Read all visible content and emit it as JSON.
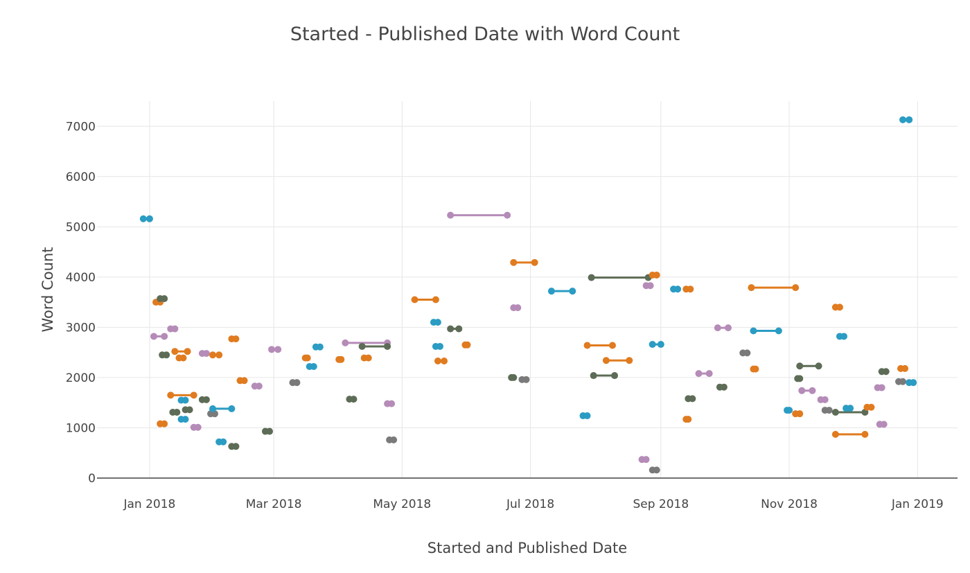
{
  "chart_data": {
    "type": "scatter",
    "title": "Started - Published Date with Word Count",
    "xlabel": "Started and Published Date",
    "ylabel": "Word Count",
    "x_axis_type": "date",
    "xlim": [
      "2017-12-07",
      "2019-01-20"
    ],
    "ylim": [
      0,
      7500
    ],
    "x_ticks": [
      {
        "date": "2018-01-01",
        "label": "Jan 2018"
      },
      {
        "date": "2018-03-01",
        "label": "Mar 2018"
      },
      {
        "date": "2018-05-01",
        "label": "May 2018"
      },
      {
        "date": "2018-07-01",
        "label": "Jul 2018"
      },
      {
        "date": "2018-09-01",
        "label": "Sep 2018"
      },
      {
        "date": "2018-11-01",
        "label": "Nov 2018"
      },
      {
        "date": "2019-01-01",
        "label": "Jan 2019"
      }
    ],
    "y_ticks": [
      0,
      1000,
      2000,
      3000,
      4000,
      5000,
      6000,
      7000
    ],
    "grid": true,
    "legend": "none",
    "colors": {
      "blue": "#2b9cc3",
      "orange": "#e07b1f",
      "olive": "#5d6c56",
      "purple": "#b58bb8",
      "gray": "#7a7a7a"
    },
    "series": [
      {
        "started": "2017-12-29",
        "published": "2018-01-01",
        "word_count": 5160,
        "color": "blue"
      },
      {
        "started": "2018-01-04",
        "published": "2018-01-06",
        "word_count": 3500,
        "color": "orange"
      },
      {
        "started": "2018-01-07",
        "published": "2018-01-07",
        "word_count": 3570,
        "color": "olive"
      },
      {
        "started": "2018-01-03",
        "published": "2018-01-08",
        "word_count": 2820,
        "color": "purple"
      },
      {
        "started": "2018-01-08",
        "published": "2018-01-08",
        "word_count": 2450,
        "color": "olive"
      },
      {
        "started": "2018-01-07",
        "published": "2018-01-07",
        "word_count": 1080,
        "color": "orange"
      },
      {
        "started": "2018-01-11",
        "published": "2018-01-13",
        "word_count": 2970,
        "color": "purple"
      },
      {
        "started": "2018-01-13",
        "published": "2018-01-19",
        "word_count": 2520,
        "color": "orange"
      },
      {
        "started": "2018-01-16",
        "published": "2018-01-16",
        "word_count": 2390,
        "color": "orange"
      },
      {
        "started": "2018-01-11",
        "published": "2018-01-22",
        "word_count": 1650,
        "color": "orange"
      },
      {
        "started": "2018-01-13",
        "published": "2018-01-13",
        "word_count": 1310,
        "color": "olive"
      },
      {
        "started": "2018-01-17",
        "published": "2018-01-17",
        "word_count": 1550,
        "color": "blue"
      },
      {
        "started": "2018-01-19",
        "published": "2018-01-19",
        "word_count": 1360,
        "color": "olive"
      },
      {
        "started": "2018-01-17",
        "published": "2018-01-17",
        "word_count": 1170,
        "color": "blue"
      },
      {
        "started": "2018-01-23",
        "published": "2018-01-23",
        "word_count": 1010,
        "color": "purple"
      },
      {
        "started": "2018-01-27",
        "published": "2018-01-27",
        "word_count": 2480,
        "color": "purple"
      },
      {
        "started": "2018-01-31",
        "published": "2018-02-03",
        "word_count": 2450,
        "color": "orange"
      },
      {
        "started": "2018-01-27",
        "published": "2018-01-27",
        "word_count": 1560,
        "color": "olive"
      },
      {
        "started": "2018-01-31",
        "published": "2018-01-31",
        "word_count": 1280,
        "color": "gray"
      },
      {
        "started": "2018-01-31",
        "published": "2018-02-09",
        "word_count": 1380,
        "color": "blue"
      },
      {
        "started": "2018-02-04",
        "published": "2018-02-04",
        "word_count": 720,
        "color": "blue"
      },
      {
        "started": "2018-02-09",
        "published": "2018-02-11",
        "word_count": 630,
        "color": "olive"
      },
      {
        "started": "2018-02-10",
        "published": "2018-02-10",
        "word_count": 2770,
        "color": "orange"
      },
      {
        "started": "2018-02-14",
        "published": "2018-02-14",
        "word_count": 1940,
        "color": "orange"
      },
      {
        "started": "2018-02-20",
        "published": "2018-02-22",
        "word_count": 1830,
        "color": "purple"
      },
      {
        "started": "2018-02-25",
        "published": "2018-02-27",
        "word_count": 930,
        "color": "olive"
      },
      {
        "started": "2018-02-28",
        "published": "2018-03-03",
        "word_count": 2560,
        "color": "purple"
      },
      {
        "started": "2018-03-11",
        "published": "2018-03-11",
        "word_count": 1900,
        "color": "gray"
      },
      {
        "started": "2018-03-16",
        "published": "2018-03-17",
        "word_count": 2390,
        "color": "orange"
      },
      {
        "started": "2018-03-18",
        "published": "2018-03-20",
        "word_count": 2220,
        "color": "blue"
      },
      {
        "started": "2018-03-22",
        "published": "2018-03-22",
        "word_count": 2610,
        "color": "blue"
      },
      {
        "started": "2018-04-01",
        "published": "2018-04-02",
        "word_count": 2360,
        "color": "orange"
      },
      {
        "started": "2018-04-04",
        "published": "2018-04-24",
        "word_count": 2690,
        "color": "purple"
      },
      {
        "started": "2018-04-06",
        "published": "2018-04-08",
        "word_count": 1570,
        "color": "olive"
      },
      {
        "started": "2018-04-12",
        "published": "2018-04-24",
        "word_count": 2620,
        "color": "olive"
      },
      {
        "started": "2018-04-13",
        "published": "2018-04-15",
        "word_count": 2390,
        "color": "orange"
      },
      {
        "started": "2018-04-25",
        "published": "2018-04-25",
        "word_count": 1480,
        "color": "purple"
      },
      {
        "started": "2018-04-26",
        "published": "2018-04-26",
        "word_count": 760,
        "color": "gray"
      },
      {
        "started": "2018-05-07",
        "published": "2018-05-17",
        "word_count": 3550,
        "color": "orange"
      },
      {
        "started": "2018-05-17",
        "published": "2018-05-17",
        "word_count": 3100,
        "color": "blue"
      },
      {
        "started": "2018-05-17",
        "published": "2018-05-19",
        "word_count": 2620,
        "color": "blue"
      },
      {
        "started": "2018-05-18",
        "published": "2018-05-21",
        "word_count": 2330,
        "color": "orange"
      },
      {
        "started": "2018-05-24",
        "published": "2018-05-28",
        "word_count": 2970,
        "color": "olive"
      },
      {
        "started": "2018-05-24",
        "published": "2018-06-20",
        "word_count": 5230,
        "color": "purple"
      },
      {
        "started": "2018-05-31",
        "published": "2018-06-01",
        "word_count": 2650,
        "color": "orange"
      },
      {
        "started": "2018-06-22",
        "published": "2018-06-23",
        "word_count": 2000,
        "color": "olive"
      },
      {
        "started": "2018-06-23",
        "published": "2018-07-03",
        "word_count": 4290,
        "color": "orange"
      },
      {
        "started": "2018-06-24",
        "published": "2018-06-24",
        "word_count": 3390,
        "color": "purple"
      },
      {
        "started": "2018-06-28",
        "published": "2018-06-28",
        "word_count": 1960,
        "color": "gray"
      },
      {
        "started": "2018-07-11",
        "published": "2018-07-21",
        "word_count": 3720,
        "color": "blue"
      },
      {
        "started": "2018-07-27",
        "published": "2018-07-27",
        "word_count": 1240,
        "color": "blue"
      },
      {
        "started": "2018-07-28",
        "published": "2018-08-09",
        "word_count": 2640,
        "color": "orange"
      },
      {
        "started": "2018-07-30",
        "published": "2018-08-26",
        "word_count": 3990,
        "color": "olive"
      },
      {
        "started": "2018-07-31",
        "published": "2018-08-10",
        "word_count": 2040,
        "color": "olive"
      },
      {
        "started": "2018-08-06",
        "published": "2018-08-17",
        "word_count": 2340,
        "color": "orange"
      },
      {
        "started": "2018-08-26",
        "published": "2018-08-26",
        "word_count": 3830,
        "color": "purple"
      },
      {
        "started": "2018-08-24",
        "published": "2018-08-24",
        "word_count": 370,
        "color": "purple"
      },
      {
        "started": "2018-08-28",
        "published": "2018-09-01",
        "word_count": 2660,
        "color": "blue"
      },
      {
        "started": "2018-08-29",
        "published": "2018-08-29",
        "word_count": 4040,
        "color": "orange"
      },
      {
        "started": "2018-08-29",
        "published": "2018-08-29",
        "word_count": 160,
        "color": "gray"
      },
      {
        "started": "2018-09-07",
        "published": "2018-09-09",
        "word_count": 3760,
        "color": "blue"
      },
      {
        "started": "2018-09-13",
        "published": "2018-09-15",
        "word_count": 3760,
        "color": "orange"
      },
      {
        "started": "2018-09-13",
        "published": "2018-09-14",
        "word_count": 1170,
        "color": "orange"
      },
      {
        "started": "2018-09-15",
        "published": "2018-09-15",
        "word_count": 1580,
        "color": "olive"
      },
      {
        "started": "2018-09-19",
        "published": "2018-09-24",
        "word_count": 2080,
        "color": "purple"
      },
      {
        "started": "2018-09-30",
        "published": "2018-09-30",
        "word_count": 1810,
        "color": "olive"
      },
      {
        "started": "2018-09-28",
        "published": "2018-10-03",
        "word_count": 2990,
        "color": "purple"
      },
      {
        "started": "2018-10-10",
        "published": "2018-10-12",
        "word_count": 2490,
        "color": "gray"
      },
      {
        "started": "2018-10-14",
        "published": "2018-11-04",
        "word_count": 3790,
        "color": "orange"
      },
      {
        "started": "2018-10-15",
        "published": "2018-10-27",
        "word_count": 2930,
        "color": "blue"
      },
      {
        "started": "2018-10-15",
        "published": "2018-10-16",
        "word_count": 2170,
        "color": "orange"
      },
      {
        "started": "2018-10-31",
        "published": "2018-11-01",
        "word_count": 1350,
        "color": "blue"
      },
      {
        "started": "2018-11-04",
        "published": "2018-11-06",
        "word_count": 1280,
        "color": "orange"
      },
      {
        "started": "2018-11-05",
        "published": "2018-11-06",
        "word_count": 1980,
        "color": "olive"
      },
      {
        "started": "2018-11-06",
        "published": "2018-11-15",
        "word_count": 2230,
        "color": "olive"
      },
      {
        "started": "2018-11-07",
        "published": "2018-11-12",
        "word_count": 1740,
        "color": "purple"
      },
      {
        "started": "2018-11-16",
        "published": "2018-11-18",
        "word_count": 1560,
        "color": "purple"
      },
      {
        "started": "2018-11-19",
        "published": "2018-11-19",
        "word_count": 1350,
        "color": "gray"
      },
      {
        "started": "2018-11-23",
        "published": "2018-11-25",
        "word_count": 3400,
        "color": "orange"
      },
      {
        "started": "2018-11-23",
        "published": "2018-12-07",
        "word_count": 1310,
        "color": "olive"
      },
      {
        "started": "2018-11-23",
        "published": "2018-12-07",
        "word_count": 870,
        "color": "orange"
      },
      {
        "started": "2018-11-25",
        "published": "2018-11-27",
        "word_count": 2820,
        "color": "blue"
      },
      {
        "started": "2018-11-29",
        "published": "2018-11-29",
        "word_count": 1390,
        "color": "blue"
      },
      {
        "started": "2018-12-09",
        "published": "2018-12-09",
        "word_count": 1410,
        "color": "orange"
      },
      {
        "started": "2018-12-14",
        "published": "2018-12-14",
        "word_count": 1800,
        "color": "purple"
      },
      {
        "started": "2018-12-15",
        "published": "2018-12-15",
        "word_count": 1070,
        "color": "purple"
      },
      {
        "started": "2018-12-16",
        "published": "2018-12-16",
        "word_count": 2120,
        "color": "olive"
      },
      {
        "started": "2018-12-24",
        "published": "2018-12-24",
        "word_count": 1920,
        "color": "gray"
      },
      {
        "started": "2018-12-24",
        "published": "2018-12-26",
        "word_count": 2180,
        "color": "orange"
      },
      {
        "started": "2018-12-25",
        "published": "2018-12-28",
        "word_count": 7130,
        "color": "blue"
      },
      {
        "started": "2018-12-28",
        "published": "2018-12-30",
        "word_count": 1900,
        "color": "blue"
      }
    ]
  }
}
